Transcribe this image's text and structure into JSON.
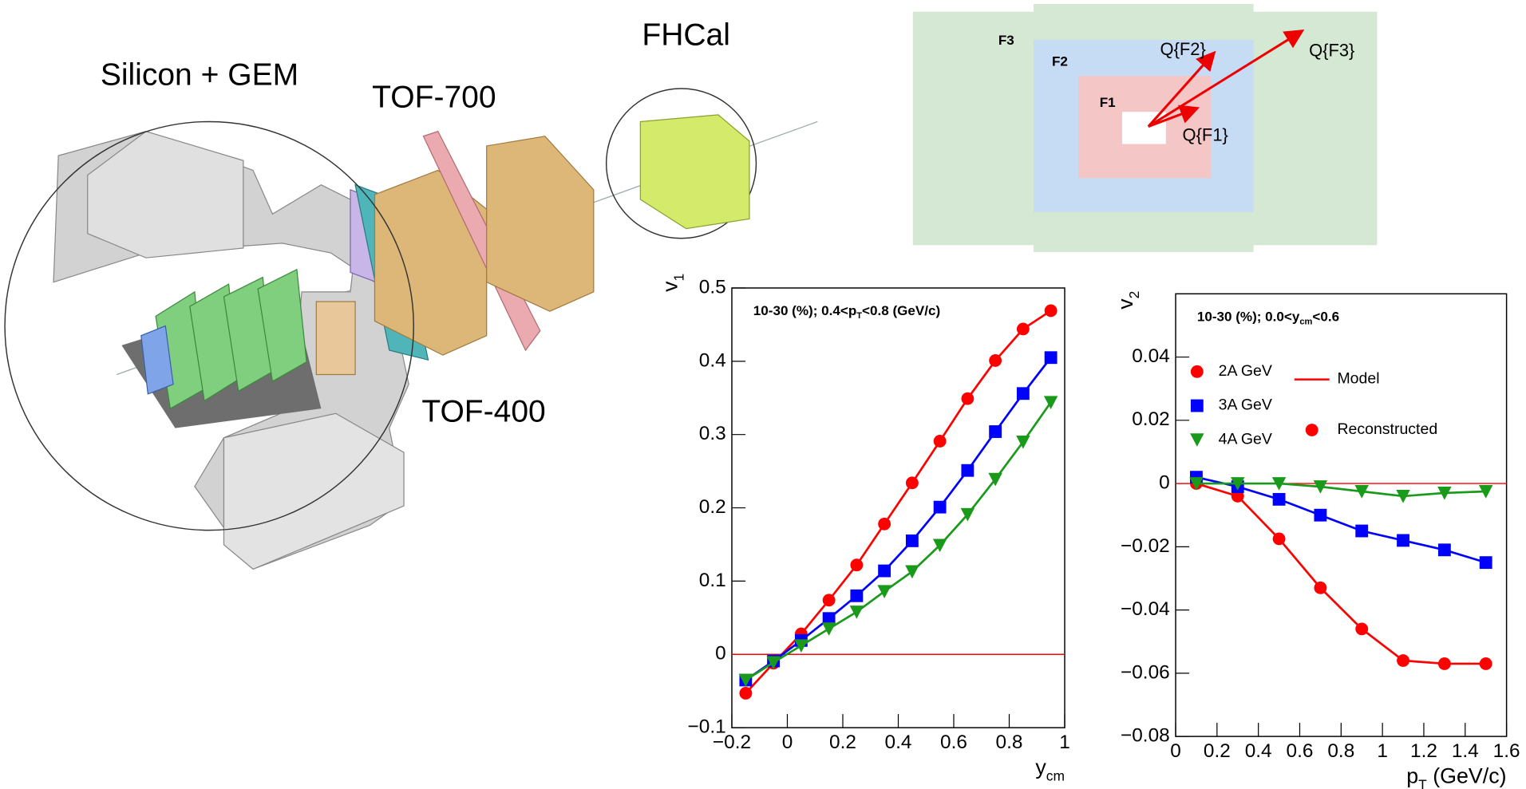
{
  "detector": {
    "labels": [
      "Silicon + GEM",
      "TOF-700",
      "FHCal",
      "TOF-400"
    ]
  },
  "flow_diagram": {
    "regions": [
      "F3",
      "F2",
      "F1"
    ],
    "vectors": [
      "Q{F2}",
      "Q{F3}",
      "Q{F1}"
    ]
  },
  "chart_data": [
    {
      "type": "scatter",
      "annotation": [
        "10-30 (%); 0.4<p",
        "T",
        "<0.8 (GeV/c)"
      ],
      "xlabel": [
        "y",
        "cm"
      ],
      "ylabel": [
        "v",
        "1"
      ],
      "x": [
        -0.15,
        -0.05,
        0.05,
        0.15,
        0.25,
        0.35,
        0.45,
        0.55,
        0.65,
        0.75,
        0.85,
        0.95
      ],
      "xlim": [
        -0.2,
        1
      ],
      "ylim": [
        -0.1,
        0.5
      ],
      "xticks": [
        {
          "value": -0.2,
          "label": "−0.2"
        },
        0,
        0.2,
        0.4,
        0.6,
        0.8,
        1
      ],
      "yticks": [
        {
          "value": -0.1,
          "label": "−0.1"
        },
        0,
        0.1,
        0.2,
        0.3,
        0.4,
        0.5
      ],
      "zero_line_color": "#ff0000",
      "series": [
        {
          "color": "#ff0000",
          "marker": "circle",
          "line": true,
          "values": [
            -0.053,
            -0.012,
            0.028,
            0.074,
            0.122,
            0.178,
            0.234,
            0.291,
            0.349,
            0.401,
            0.444,
            0.469
          ]
        },
        {
          "color": "#0000ff",
          "marker": "square",
          "line": true,
          "values": [
            -0.035,
            -0.009,
            0.019,
            0.049,
            0.08,
            0.114,
            0.155,
            0.201,
            0.251,
            0.304,
            0.356,
            0.405
          ]
        },
        {
          "color": "#1a9a1a",
          "marker": "triangle-down",
          "line": true,
          "values": [
            -0.035,
            -0.011,
            0.012,
            0.035,
            0.058,
            0.086,
            0.113,
            0.149,
            0.191,
            0.239,
            0.29,
            0.344
          ]
        }
      ]
    },
    {
      "type": "scatter",
      "annotation": [
        "10-30 (%); 0.0<y",
        "cm",
        "<0.6"
      ],
      "xlabel": [
        "p",
        "T",
        " (GeV/c)"
      ],
      "ylabel": [
        "v",
        "2"
      ],
      "x": [
        0.1,
        0.3,
        0.5,
        0.7,
        0.9,
        1.1,
        1.3,
        1.5
      ],
      "xlim": [
        0,
        1.6
      ],
      "ylim": [
        -0.08,
        0.06
      ],
      "xticks": [
        0,
        0.2,
        0.4,
        0.6,
        0.8,
        1,
        1.2,
        1.4,
        1.6
      ],
      "yticks": [
        {
          "value": -0.08,
          "label": "−0.08"
        },
        {
          "value": -0.06,
          "label": "−0.06"
        },
        {
          "value": -0.04,
          "label": "−0.04"
        },
        {
          "value": -0.02,
          "label": "−0.02"
        },
        0,
        0.02,
        0.04
      ],
      "zero_line_color": "#ff0000",
      "legend": "upper left",
      "series": [
        {
          "name": "2A GeV",
          "color": "#ff0000",
          "marker": "circle",
          "line": true,
          "values": [
            0,
            -0.004,
            -0.0175,
            -0.033,
            -0.046,
            -0.056,
            -0.057,
            -0.057
          ]
        },
        {
          "name": "3A GeV",
          "color": "#0000ff",
          "marker": "square",
          "line": true,
          "values": [
            0.002,
            -0.001,
            -0.005,
            -0.01,
            -0.015,
            -0.018,
            -0.021,
            -0.025
          ]
        },
        {
          "name": "4A GeV",
          "color": "#1a9a1a",
          "marker": "triangle-down",
          "line": true,
          "values": [
            0,
            0,
            0,
            -0.001,
            -0.0025,
            -0.004,
            -0.003,
            -0.0025
          ]
        }
      ],
      "legend_items": [
        {
          "label": "Model",
          "marker": "line",
          "color": "#ff0000"
        },
        {
          "label": "Reconstructed",
          "marker": "circle",
          "color": "#ff0000"
        }
      ]
    }
  ]
}
